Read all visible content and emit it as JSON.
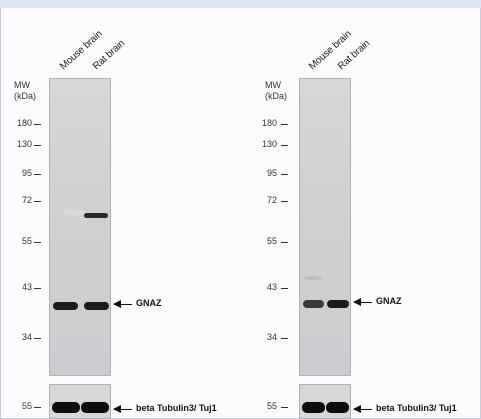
{
  "panels": [
    {
      "lanes": [
        "Mouse brain",
        "Rat brain"
      ],
      "mw_label": "MW\n(kDa)",
      "markers": [
        "180",
        "130",
        "95",
        "72",
        "55",
        "43",
        "34"
      ],
      "target_label": "GNAZ",
      "loading_marker": "55",
      "loading_label": "beta Tubulin3/ Tuj1"
    },
    {
      "lanes": [
        "Mouse brain",
        "Rat brain"
      ],
      "mw_label": "MW\n(kDa)",
      "markers": [
        "180",
        "130",
        "95",
        "72",
        "55",
        "43",
        "34"
      ],
      "target_label": "GNAZ",
      "loading_marker": "55",
      "loading_label": "beta Tubulin3/ Tuj1"
    }
  ]
}
